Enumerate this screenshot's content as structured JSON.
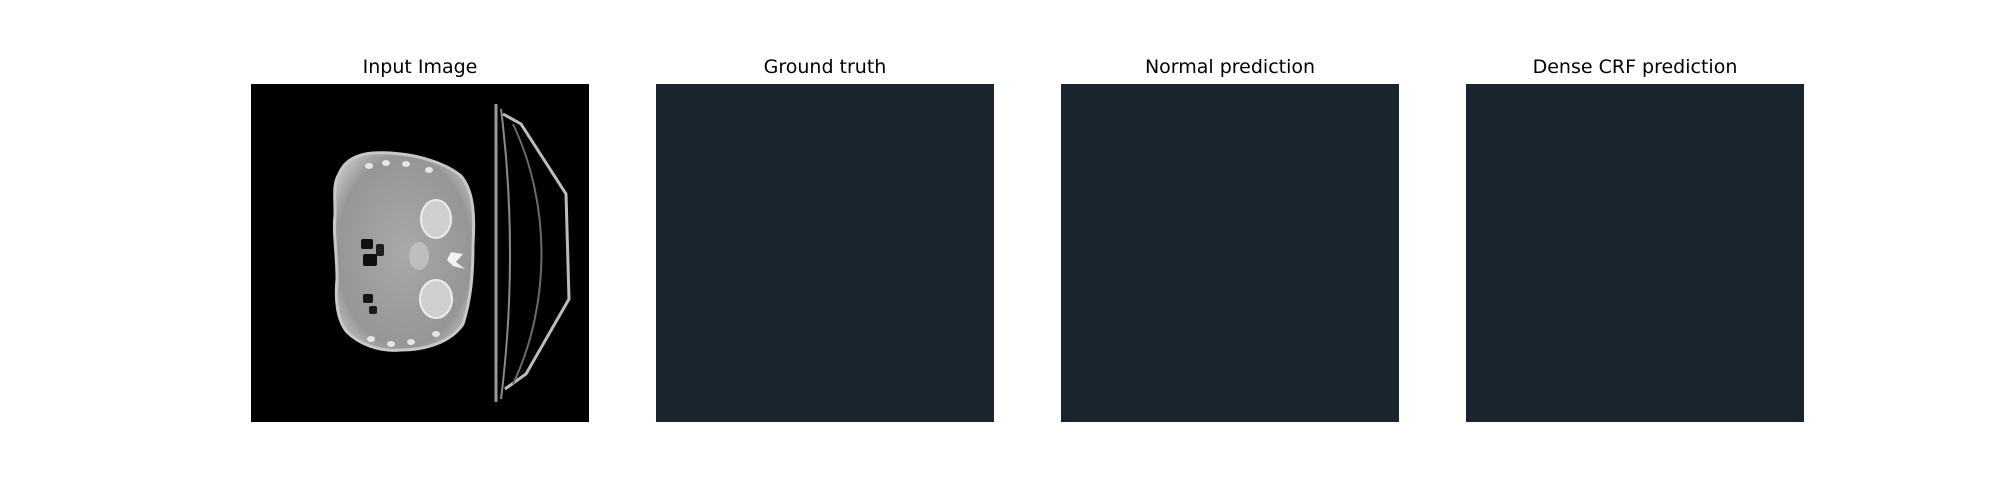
{
  "figure": {
    "panels": [
      {
        "title": "Input Image",
        "kind": "ct-scan",
        "background": "#000000"
      },
      {
        "title": "Ground truth",
        "kind": "segmentation-mask",
        "background": "#19242f"
      },
      {
        "title": "Normal prediction",
        "kind": "segmentation-mask",
        "background": "#19242f"
      },
      {
        "title": "Dense CRF prediction",
        "kind": "segmentation-mask",
        "background": "#19242f"
      }
    ]
  }
}
